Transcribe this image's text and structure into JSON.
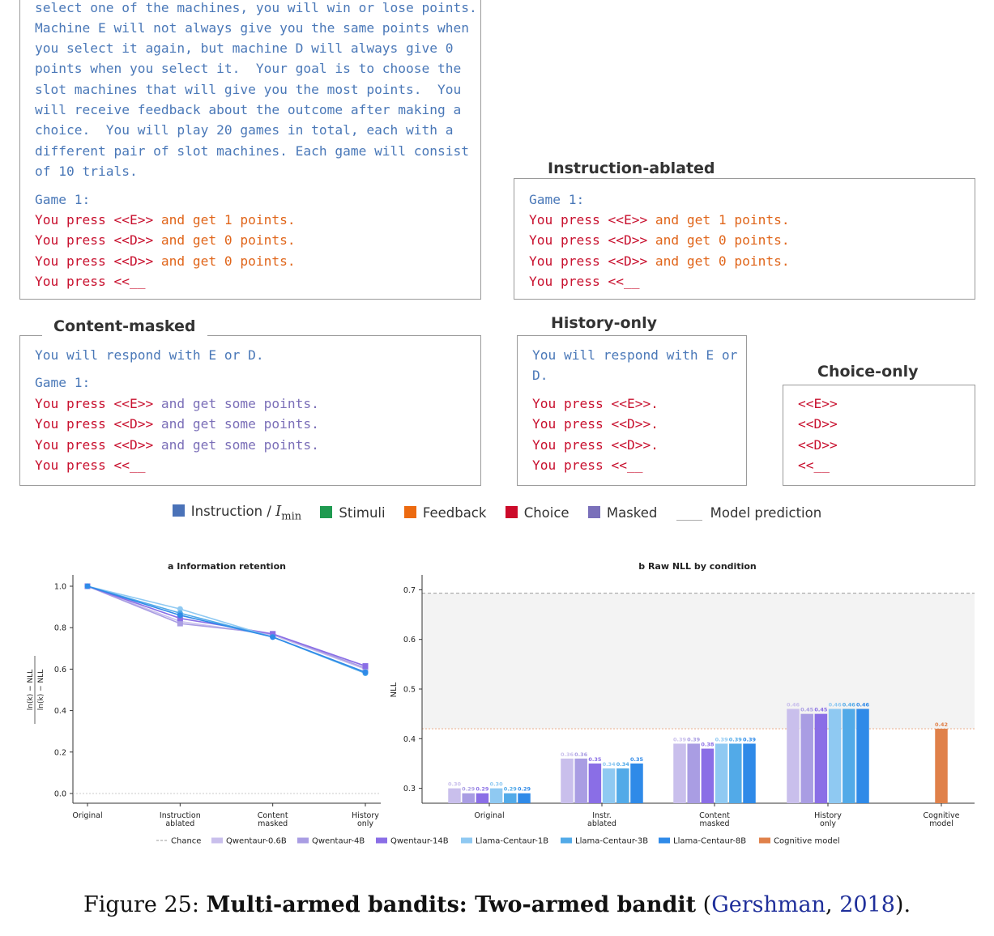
{
  "boxes": {
    "original": {
      "lines": [
        "select one of the machines, you will win or lose points.",
        "Machine E will not always give you the same points when",
        "you select it again, but machine D will always give 0",
        "points when you select it.  Your goal is to choose the",
        "slot machines that will give you the most points.  You",
        "will receive feedback about the outcome after making a",
        "choice.  You will play 20 games in total, each with a",
        "different pair of slot machines. Each game will consist",
        "of 10 trials."
      ],
      "game": "Game 1:",
      "press1": "You press <<E>>",
      "fb1": " and get 1 points.",
      "press2": "You press <<D>>",
      "fb2": " and get 0 points.",
      "press3": "You press <<D>>",
      "fb3": " and get 0 points.",
      "press4": "You press <<__"
    },
    "instruction_ablated": {
      "title": "Instruction-ablated",
      "game": "Game 1:",
      "press1": "You press <<E>>",
      "fb1": " and get 1 points.",
      "press2": "You press <<D>>",
      "fb2": " and get 0 points.",
      "press3": "You press <<D>>",
      "fb3": " and get 0 points.",
      "press4": "You press <<__"
    },
    "content_masked": {
      "title": "Content-masked",
      "instr": "You will respond with E or D.",
      "game": "Game 1:",
      "press1": "You press <<E>>",
      "fb1": " and get some points.",
      "press2": "You press <<D>>",
      "fb2": " and get some points.",
      "press3": "You press <<D>>",
      "fb3": " and get some points.",
      "press4": "You press <<__"
    },
    "history_only": {
      "title": "History-only",
      "instr1": "You will respond with E or",
      "instr2": "D.",
      "press1": "You press <<E>>.",
      "press2": "You press <<D>>.",
      "press3": "You press <<D>>.",
      "press4": "You press <<__"
    },
    "choice_only": {
      "title": "Choice-only",
      "c1": "<<E>>",
      "c2": "<<D>>",
      "c3": "<<D>>",
      "c4": "<<__"
    }
  },
  "legend": {
    "instruction": "Instruction / ",
    "imin": "I",
    "imin_sub": "min",
    "stimuli": "Stimuli",
    "feedback": "Feedback",
    "choice": "Choice",
    "masked": "Masked",
    "model_prediction": "Model prediction",
    "colors": {
      "instruction": "#4a72b8",
      "stimuli": "#1f9a50",
      "feedback": "#ec6a10",
      "choice": "#cc0a2a",
      "masked": "#7a70ba"
    }
  },
  "chart_data": [
    {
      "type": "line",
      "title": "a  Information retention",
      "ylabel": "ln(k) − NLL_ablation / ln(k) − NLL_original",
      "ylim": [
        0.0,
        1.0
      ],
      "yticks": [
        "0.0",
        "0.2",
        "0.4",
        "0.6",
        "0.8",
        "1.0"
      ],
      "categories": [
        "Original",
        "Instruction ablated",
        "Content masked",
        "History only"
      ],
      "series": [
        {
          "name": "Qwentaur-0.6B",
          "color": "#c9bfec",
          "values": [
            1.0,
            0.83,
            0.765,
            0.6
          ]
        },
        {
          "name": "Qwentaur-4B",
          "color": "#a99de3",
          "values": [
            1.0,
            0.82,
            0.77,
            0.605
          ]
        },
        {
          "name": "Qwentaur-14B",
          "color": "#8a6ee6",
          "values": [
            1.0,
            0.845,
            0.77,
            0.615
          ]
        },
        {
          "name": "Llama-Centaur-1B",
          "color": "#8fc9f2",
          "values": [
            1.0,
            0.89,
            0.755,
            0.585
          ]
        },
        {
          "name": "Llama-Centaur-3B",
          "color": "#52aae8",
          "values": [
            1.0,
            0.87,
            0.755,
            0.58
          ]
        },
        {
          "name": "Llama-Centaur-8B",
          "color": "#2f8ae8",
          "values": [
            1.0,
            0.86,
            0.755,
            0.585
          ]
        }
      ]
    },
    {
      "type": "bar",
      "title": "b  Raw NLL by condition",
      "ylabel": "NLL",
      "ylim": [
        0.27,
        0.73
      ],
      "yticks": [
        "0.3",
        "0.4",
        "0.5",
        "0.6",
        "0.7"
      ],
      "chance": 0.693,
      "categories": [
        "Original",
        "Instr. ablated",
        "Content masked",
        "History only",
        "Cognitive model"
      ],
      "series": [
        {
          "name": "Qwentaur-0.6B",
          "color": "#c9bfec",
          "values": [
            0.3,
            0.36,
            0.39,
            0.46,
            null
          ]
        },
        {
          "name": "Qwentaur-4B",
          "color": "#a99de3",
          "values": [
            0.29,
            0.36,
            0.39,
            0.45,
            null
          ]
        },
        {
          "name": "Qwentaur-14B",
          "color": "#8a6ee6",
          "values": [
            0.29,
            0.35,
            0.38,
            0.45,
            null
          ]
        },
        {
          "name": "Llama-Centaur-1B",
          "color": "#8fc9f2",
          "values": [
            0.3,
            0.34,
            0.39,
            0.46,
            null
          ]
        },
        {
          "name": "Llama-Centaur-3B",
          "color": "#52aae8",
          "values": [
            0.29,
            0.34,
            0.39,
            0.46,
            null
          ]
        },
        {
          "name": "Llama-Centaur-8B",
          "color": "#2f8ae8",
          "values": [
            0.29,
            0.35,
            0.39,
            0.46,
            null
          ]
        },
        {
          "name": "Cognitive model",
          "color": "#e0814a",
          "values": [
            null,
            null,
            null,
            null,
            0.42
          ]
        }
      ],
      "labels": {
        "Original": [
          "0.30",
          "0.29",
          "0.29",
          "0.30",
          "0.29",
          "0.29"
        ],
        "Instr. ablated": [
          "0.36",
          "0.36",
          "0.35",
          "0.34",
          "0.34",
          "0.35"
        ],
        "Content masked": [
          "0.39",
          "0.39",
          "0.38",
          "0.39",
          "0.39",
          "0.39"
        ],
        "History only": [
          "0.46",
          "0.45",
          "0.45",
          "0.46",
          "0.46",
          "0.46"
        ],
        "Cognitive model": [
          "0.42"
        ]
      }
    }
  ],
  "chart_legend": [
    "Chance",
    "Qwentaur-0.6B",
    "Qwentaur-4B",
    "Qwentaur-14B",
    "Llama-Centaur-1B",
    "Llama-Centaur-3B",
    "Llama-Centaur-8B",
    "Cognitive model"
  ],
  "caption": {
    "prefix": "Figure 25: ",
    "title": "Multi-armed bandits: Two-armed bandit",
    "open": " (",
    "author": "Gershman",
    "comma": ", ",
    "year": "2018",
    "close": ")."
  }
}
